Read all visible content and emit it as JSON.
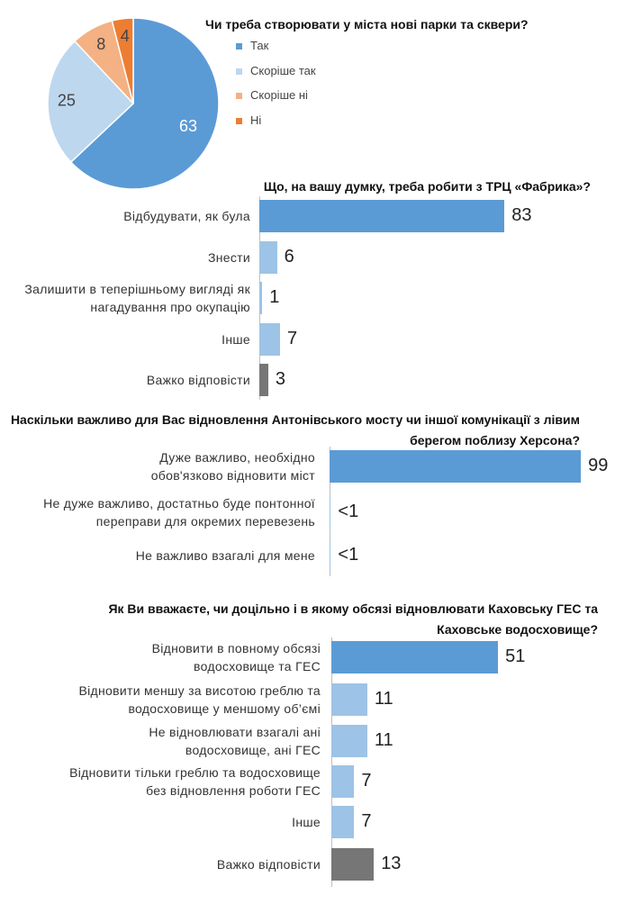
{
  "chart_data": [
    {
      "type": "pie",
      "title": "Чи треба створювати у міста нові парки та сквери?",
      "categories": [
        "Так",
        "Скоріше так",
        "Скоріше ні",
        "Ні"
      ],
      "values": [
        63,
        25,
        8,
        4
      ],
      "colors": [
        "#5b9bd5",
        "#bdd7ee",
        "#f4b183",
        "#ed7d31"
      ],
      "legend": "right"
    },
    {
      "type": "bar",
      "orientation": "horizontal",
      "title": "Що, на вашу думку, треба робити з ТРЦ «Фабрика»?",
      "categories": [
        "Відбудувати, як була",
        "Знести",
        "Залишити в теперішньому вигляді як нагадування про окупацію",
        "Інше",
        "Важко відповісти"
      ],
      "values": [
        83,
        6,
        1,
        7,
        3
      ],
      "colors": [
        "#5b9bd5",
        "#9dc3e6",
        "#9dc3e6",
        "#9dc3e6",
        "#767676"
      ]
    },
    {
      "type": "bar",
      "orientation": "horizontal",
      "title": "Наскільки важливо для Вас відновлення Антонівського мосту чи іншої комунікації з лівим берегом поблизу Херсона?",
      "categories": [
        "Дуже важливо, необхідно обов'язково відновити міст",
        "Не дуже важливо, достатньо буде понтонної переправи для окремих перевезень",
        "Не важливо взагалі для мене"
      ],
      "values": [
        99,
        0.5,
        0.5
      ],
      "value_labels": [
        "99",
        "<1",
        "<1"
      ],
      "colors": [
        "#5b9bd5",
        "#9dc3e6",
        "#9dc3e6"
      ]
    },
    {
      "type": "bar",
      "orientation": "horizontal",
      "title": "Як Ви вважаєте, чи доцільно і в якому обсязі відновлювати Каховську ГЕС та Каховське водосховище?",
      "categories": [
        "Відновити в повному обсязі водосховище та ГЕС",
        "Відновити меншу за висотою греблю та водосховище у меншому об’ємі",
        "Не відновлювати взагалі ані водосховище, ані ГЕС",
        "Відновити тільки греблю та водосховище без відновлення роботи ГЕС",
        "Інше",
        "Важко відповісти"
      ],
      "values": [
        51,
        11,
        11,
        7,
        7,
        13
      ],
      "colors": [
        "#5b9bd5",
        "#9dc3e6",
        "#9dc3e6",
        "#9dc3e6",
        "#9dc3e6",
        "#767676"
      ]
    }
  ]
}
